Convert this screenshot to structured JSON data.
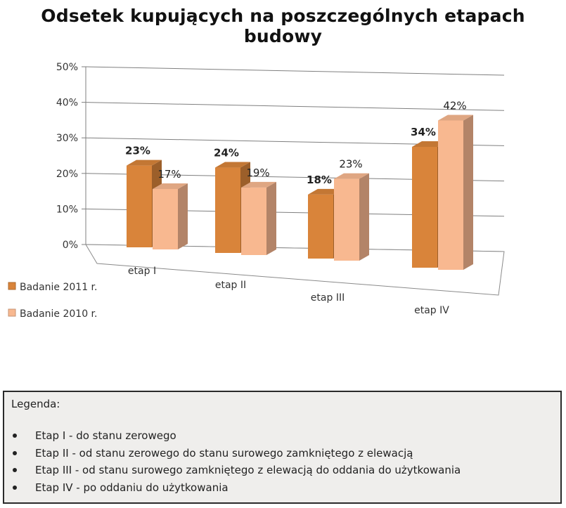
{
  "chart_data": {
    "type": "bar",
    "title": "Odsetek kupujących na poszczególnych etapach budowy",
    "categories": [
      "etap I",
      "etap II",
      "etap III",
      "etap IV"
    ],
    "series": [
      {
        "name": "Badanie 2011 r.",
        "values": [
          23,
          24,
          18,
          34
        ],
        "labels": [
          "23%",
          "24%",
          "18%",
          "34%"
        ],
        "color": "#d9843a"
      },
      {
        "name": "Badanie 2010 r.",
        "values": [
          17,
          19,
          23,
          42
        ],
        "labels": [
          "17%",
          "19%",
          "23%",
          "42%"
        ],
        "color": "#f8b890"
      }
    ],
    "ylim": [
      0,
      50
    ],
    "yticks": [
      "0%",
      "10%",
      "20%",
      "30%",
      "40%",
      "50%"
    ],
    "grid": true,
    "legend": "bottom-left"
  },
  "legend_box": {
    "heading": "Legenda:",
    "items": [
      "Etap I - do stanu zerowego",
      "Etap II - od stanu zerowego do stanu surowego zamkniętego z elewacją",
      "Etap III - od stanu surowego zamkniętego z elewacją do oddania do użytkowania",
      "Etap IV - po oddaniu do użytkowania"
    ]
  }
}
